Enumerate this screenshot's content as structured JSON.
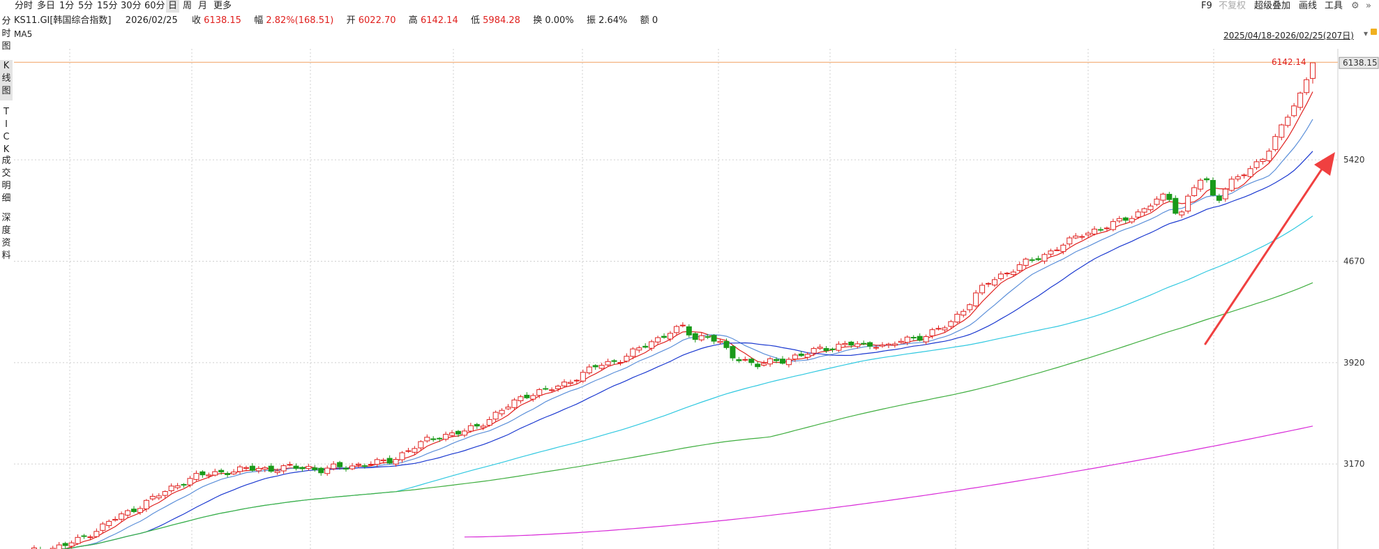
{
  "toolbar": {
    "periods": [
      "分时",
      "多日",
      "1分",
      "5分",
      "15分",
      "30分",
      "60分",
      "日",
      "周",
      "月",
      "更多"
    ],
    "active_period": "日",
    "right_tools": [
      "F9",
      "不复权",
      "超级叠加",
      "画线",
      "工具"
    ]
  },
  "info": {
    "code_name": "KS11.GI[韩国综合指数]",
    "date": "2026/02/25",
    "close_label": "收",
    "close": "6138.15",
    "change_label": "幅",
    "change": "2.82%(168.51)",
    "open_label": "开",
    "open": "6022.70",
    "high_label": "高",
    "high": "6142.14",
    "low_label": "低",
    "low": "5984.28",
    "turnover_label": "换",
    "turnover": "0.00%",
    "amplitude_label": "振",
    "amplitude": "2.64%",
    "amount_label": "额",
    "amount": "0"
  },
  "ma_label": "MA5",
  "date_range": "2025/04/18-2026/02/25(207日)",
  "left_tabs": [
    "分时图",
    "K线图",
    "TICK",
    "成交明细",
    "深度资料"
  ],
  "active_left_tab": "K线图",
  "chart_data": {
    "type": "candlestick",
    "x_range": [
      "2025/04/18",
      "2026/02/25"
    ],
    "bars": 207,
    "y_ticks": [
      3170,
      3920,
      4670,
      5420
    ],
    "high_marker": "6142.14",
    "last_price": "6138.15",
    "ylim": [
      2500,
      6200
    ],
    "colors": {
      "up": "#e0201e",
      "down": "#1a9a1a",
      "ma5": "#e0201e",
      "ma10": "#5b8fd9",
      "ma20": "#1a38d0",
      "ma60": "#2fc8e0",
      "ma120": "#3fae3f",
      "ma250": "#d82ad8"
    },
    "closes_sample": [
      2520,
      2530,
      2545,
      2570,
      2600,
      2650,
      2700,
      2760,
      2800,
      2850,
      2900,
      2950,
      3000,
      3050,
      3080,
      3100,
      3110,
      3120,
      3130,
      3140,
      3130,
      3140,
      3145,
      3150,
      3120,
      3140,
      3150,
      3160,
      3170,
      3180,
      3200,
      3250,
      3300,
      3350,
      3380,
      3390,
      3410,
      3450,
      3500,
      3560,
      3620,
      3680,
      3700,
      3720,
      3750,
      3800,
      3850,
      3900,
      3920,
      3950,
      4000,
      4050,
      4100,
      4150,
      4180,
      4100,
      4120,
      4080,
      3960,
      3950,
      3900,
      3920,
      3930,
      3960,
      3980,
      4010,
      4030,
      4050,
      4060,
      4040,
      4060,
      4040,
      4080,
      4100,
      4120,
      4160,
      4200,
      4300,
      4400,
      4500,
      4550,
      4600,
      4650,
      4680,
      4720,
      4780,
      4820,
      4870,
      4900,
      4930,
      4960,
      5000,
      5050,
      5120,
      5150,
      5000,
      5200,
      5300,
      5100,
      5250,
      5300,
      5350,
      5450,
      5600,
      5750,
      5900,
      6138
    ]
  },
  "arrow_color": "#f04040"
}
